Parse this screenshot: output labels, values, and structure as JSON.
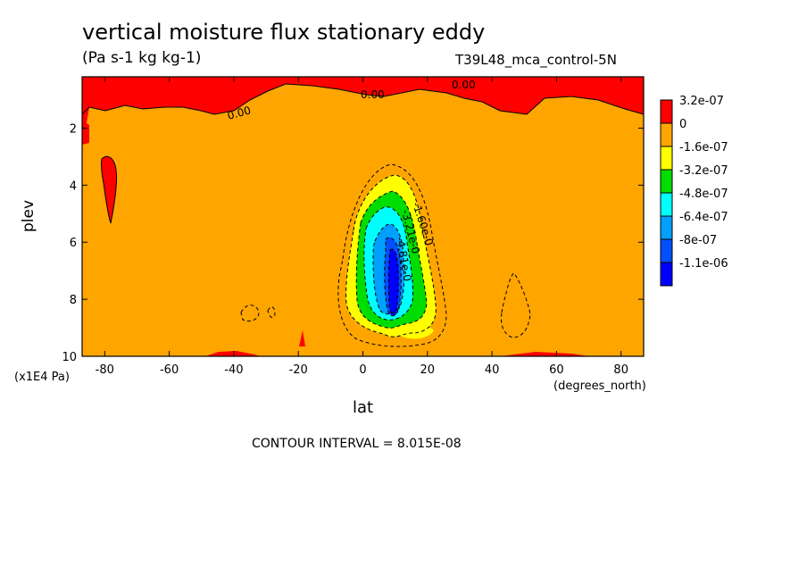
{
  "chart_data": {
    "type": "contour",
    "title": "vertical moisture flux stationary eddy",
    "units": "(Pa s-1 kg kg-1)",
    "dataset_label": "T39L48_mca_control-5N",
    "xlabel": "lat",
    "x_units": "(degrees_north)",
    "ylabel": "plev",
    "y_units": "(x1E4 Pa)",
    "xlim": [
      -87,
      87
    ],
    "ylim": [
      10,
      0.2
    ],
    "x_ticks": [
      -80,
      -60,
      -40,
      -20,
      0,
      20,
      40,
      60,
      80
    ],
    "y_ticks": [
      2,
      4,
      6,
      8,
      10
    ],
    "x_tick_labels": [
      "-80",
      "-60",
      "-40",
      "-20",
      "0",
      "20",
      "40",
      "60",
      "80"
    ],
    "y_tick_labels": [
      "2",
      "4",
      "6",
      "8",
      "10"
    ],
    "contour_interval_text": "CONTOUR INTERVAL = 8.015E-08",
    "contour_labels": [
      "0.00",
      "0.00",
      "0.00",
      "-1.60e-0",
      "-3.21e-0",
      "-4.81e-0"
    ],
    "levels": [
      {
        "label": "3.2e-07",
        "color": "#ff0000"
      },
      {
        "label": "0",
        "color": "#ffa500"
      },
      {
        "label": "-1.6e-07",
        "color": "#ffff00"
      },
      {
        "label": "-3.2e-07",
        "color": "#00dd00"
      },
      {
        "label": "-4.8e-07",
        "color": "#00ffff"
      },
      {
        "label": "-6.4e-07",
        "color": "#00a0ff"
      },
      {
        "label": "-8e-07",
        "color": "#0050ff"
      },
      {
        "label": "-1.1e-06",
        "color": "#0000ff"
      }
    ],
    "regions": [
      {
        "name": "negative-core",
        "level_min": "-1.1e-06",
        "lat_center": 10,
        "plev_center": 7.3,
        "plev_top": 3.3,
        "plev_bottom": 9.3
      },
      {
        "name": "upper-positive-band",
        "level_min": "0",
        "plev_top": 0.2,
        "plev_bottom": 1.5
      },
      {
        "name": "positive-column-80S",
        "level_min": "0",
        "lat_center": -79,
        "plev_top": 3.0,
        "plev_bottom": 5.3
      }
    ]
  }
}
